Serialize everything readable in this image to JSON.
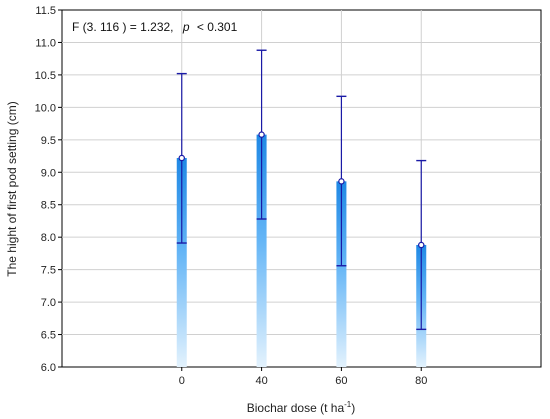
{
  "chart_data": {
    "type": "bar",
    "categories": [
      "0",
      "40",
      "60",
      "80"
    ],
    "values": [
      9.22,
      9.58,
      8.86,
      7.88
    ],
    "error_lower": [
      7.91,
      8.28,
      7.56,
      6.58
    ],
    "error_upper": [
      10.52,
      10.88,
      10.17,
      9.18
    ],
    "xlabel": "Biochar dose (t ha",
    "xlabel_sup": "-1",
    "xlabel_suffix": ")",
    "ylabel": "The hight of first pod setting (cm)",
    "ylim": [
      6.0,
      11.5
    ],
    "yticks": [
      "6.0",
      "6.5",
      "7.0",
      "7.5",
      "8.0",
      "8.5",
      "9.0",
      "9.5",
      "10.0",
      "10.5",
      "11.0",
      "11.5"
    ],
    "grid": true,
    "annotation": {
      "prefix": "F (3. 116 ) = 1.232,",
      "p_label": "p",
      "p_value": "< 0.301"
    },
    "colors": {
      "bar_top": "#1e88e5",
      "bar_bottom": "#e3f2fd",
      "error": "#1a1aa6",
      "grid": "#d0d0d0",
      "axis": "#000000"
    }
  }
}
